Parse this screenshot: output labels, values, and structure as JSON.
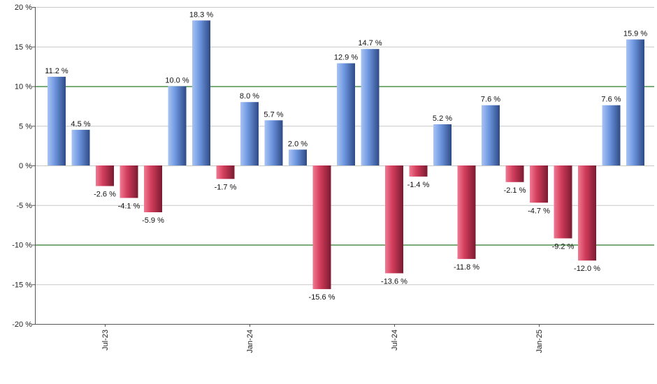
{
  "chart_data": {
    "type": "bar",
    "title": "",
    "xlabel": "",
    "ylabel": "",
    "ylim": [
      -20,
      20
    ],
    "y_ticks": [
      20,
      15,
      10,
      5,
      0,
      -5,
      -10,
      -15,
      -20
    ],
    "y_tick_labels": [
      "20 %",
      "15 %",
      "10 %",
      "5 %",
      "0 %",
      "-5 %",
      "-10 %",
      "-15 %",
      "-20 %"
    ],
    "x_tick_labels": [
      {
        "label": "Jul-23",
        "at_bar": 2
      },
      {
        "label": "Jan-24",
        "at_bar": 8
      },
      {
        "label": "Jul-24",
        "at_bar": 14
      },
      {
        "label": "Jan-25",
        "at_bar": 20
      }
    ],
    "values": [
      11.2,
      4.5,
      -2.6,
      -4.1,
      -5.9,
      10.0,
      18.3,
      -1.7,
      8.0,
      5.7,
      2.0,
      -15.6,
      12.9,
      14.7,
      -13.6,
      -1.4,
      5.2,
      -11.8,
      7.6,
      -2.1,
      -4.7,
      -9.2,
      -12.0,
      7.6,
      15.9
    ],
    "data_labels": [
      "11.2 %",
      "4.5 %",
      "-2.6 %",
      "-4.1 %",
      "-5.9 %",
      "10.0 %",
      "18.3 %",
      "-1.7 %",
      "8.0 %",
      "5.7 %",
      "2.0 %",
      "-15.6 %",
      "12.9 %",
      "14.7 %",
      "-13.6 %",
      "-1.4 %",
      "5.2 %",
      "-11.8 %",
      "7.6 %",
      "-2.1 %",
      "-4.7 %",
      "-9.2 %",
      "-12.0 %",
      "7.6 %",
      "15.9 %"
    ],
    "reference_lines": [
      10,
      -10
    ],
    "grid": true,
    "colors": {
      "positive_light": "#a8c4f4",
      "positive_mid": "#6f97e0",
      "positive_dark": "#2e4a86",
      "negative_light": "#f07a92",
      "negative_mid": "#d23d5c",
      "negative_dark": "#7a1a30",
      "grid": "#c8c8c8",
      "reference": "#2a7a2a",
      "axis": "#555555"
    }
  }
}
